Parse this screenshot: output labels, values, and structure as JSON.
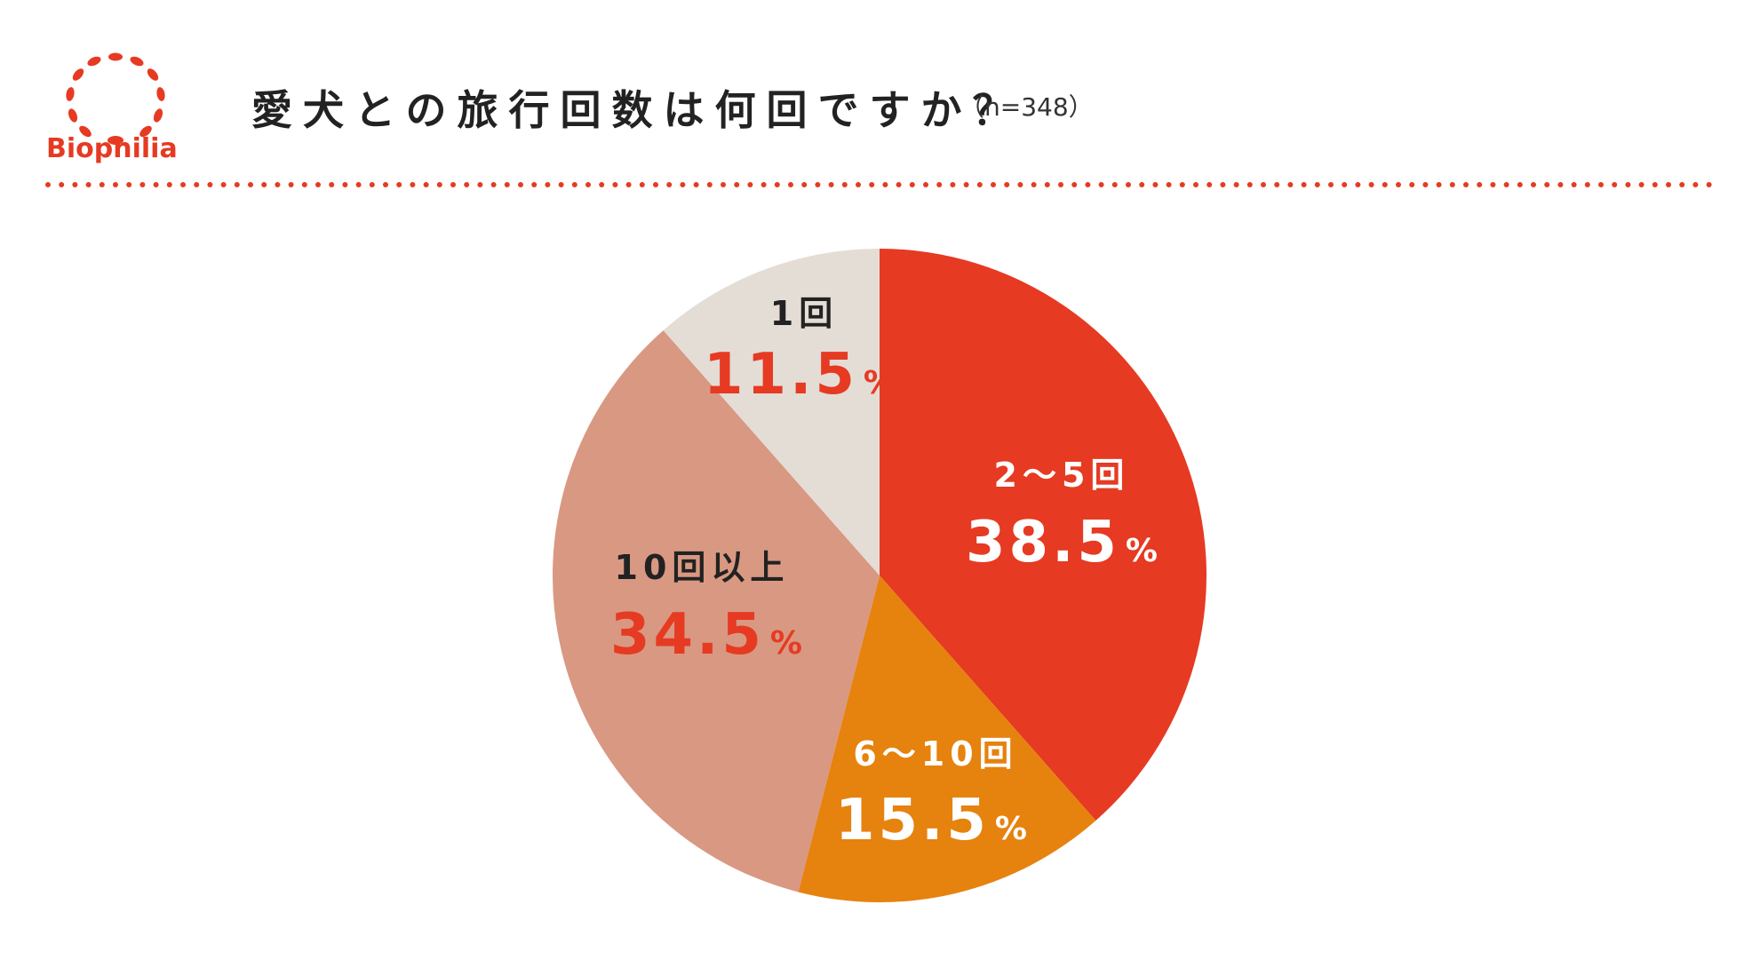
{
  "header": {
    "logo_text": "Biophilia",
    "title": "愛犬との旅行回数は何回ですか？",
    "sample_size": "（n=348）"
  },
  "colors": {
    "brand_red": "#e63a22",
    "slice_2_5": "#e63a22",
    "slice_6_10": "#e6820e",
    "slice_10plus": "#d99882",
    "slice_1": "#e3ddd6",
    "label_dark": "#222222",
    "label_light": "#ffffff"
  },
  "chart_data": {
    "type": "pie",
    "title": "愛犬との旅行回数は何回ですか？",
    "start_angle": "12 o'clock",
    "direction": "clockwise",
    "slices": [
      {
        "label": "2～5回",
        "value": 38.5,
        "value_text": "38.5",
        "unit": "%",
        "color": "#e63a22",
        "label_color": "#ffffff",
        "value_color": "#ffffff"
      },
      {
        "label": "6～10回",
        "value": 15.5,
        "value_text": "15.5",
        "unit": "%",
        "color": "#e6820e",
        "label_color": "#ffffff",
        "value_color": "#ffffff"
      },
      {
        "label": "10回以上",
        "value": 34.5,
        "value_text": "34.5",
        "unit": "%",
        "color": "#d99882",
        "label_color": "#222222",
        "value_color": "#e63a22"
      },
      {
        "label": "1回",
        "value": 11.5,
        "value_text": "11.5",
        "unit": "%",
        "color": "#e3ddd6",
        "label_color": "#222222",
        "value_color": "#e63a22"
      }
    ]
  }
}
